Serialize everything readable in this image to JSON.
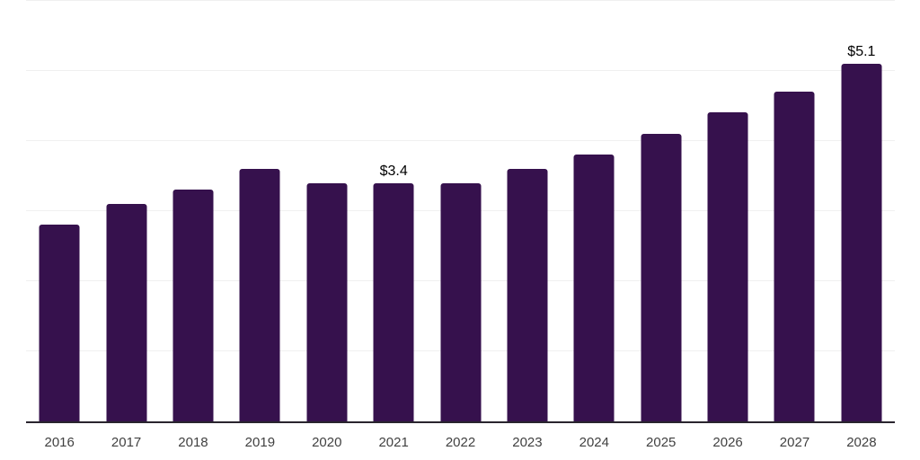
{
  "chart_data": {
    "type": "bar",
    "title": "",
    "xlabel": "",
    "ylabel": "",
    "categories": [
      "2016",
      "2017",
      "2018",
      "2019",
      "2020",
      "2021",
      "2022",
      "2023",
      "2024",
      "2025",
      "2026",
      "2027",
      "2028"
    ],
    "values": [
      2.8,
      3.1,
      3.3,
      3.6,
      3.4,
      3.4,
      3.4,
      3.6,
      3.8,
      4.1,
      4.4,
      4.7,
      5.1
    ],
    "point_labels": [
      "",
      "",
      "",
      "",
      "",
      "$3.4",
      "",
      "",
      "",
      "",
      "",
      "",
      "$5.1"
    ],
    "ylim": [
      0,
      6
    ],
    "y_gridlines": [
      1,
      2,
      3,
      4,
      5,
      6
    ],
    "grid": "on",
    "legend": "none",
    "colors": {
      "bar": "#36114d",
      "gridline": "#f0f0f0",
      "axis_line": "#29252e",
      "tick_label": "#414141",
      "data_label": "#000000",
      "background": "#ffffff"
    }
  }
}
